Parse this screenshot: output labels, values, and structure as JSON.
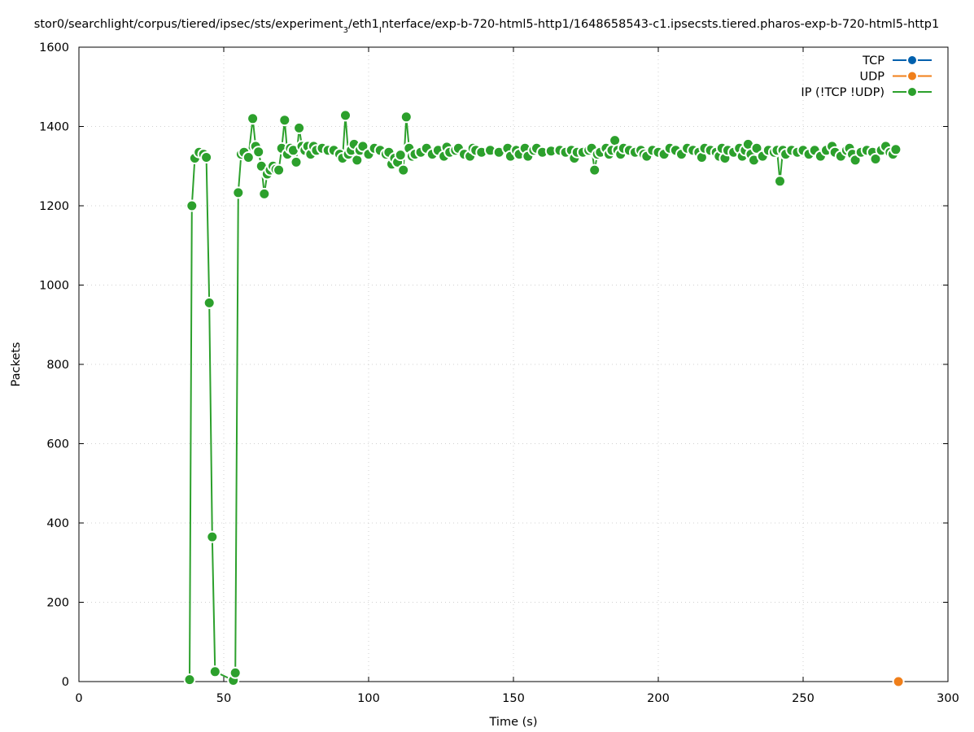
{
  "chart_data": {
    "type": "line",
    "title_parts": [
      {
        "text": "stor0/searchlight/corpus/tiered/ipsec/sts/experiment",
        "sub": false
      },
      {
        "text": "3",
        "sub": true
      },
      {
        "text": "/eth1",
        "sub": false
      },
      {
        "text": "I",
        "sub": true
      },
      {
        "text": "nterface/exp-b-720-html5-http1/1648658543-c1.ipsecsts.tiered.pharos-exp-b-720-html5-http1",
        "sub": false
      }
    ],
    "xlabel": "Time (s)",
    "ylabel": "Packets",
    "xlim": [
      0,
      300
    ],
    "ylim": [
      0,
      1600
    ],
    "xticks": [
      0,
      50,
      100,
      150,
      200,
      250,
      300
    ],
    "yticks": [
      0,
      200,
      400,
      600,
      800,
      1000,
      1200,
      1400,
      1600
    ],
    "grid": true,
    "legend_position": "top-right",
    "series": [
      {
        "name": "TCP",
        "color": "#0060ad",
        "points": []
      },
      {
        "name": "UDP",
        "color": "#f07f1a",
        "points": [
          [
            282.9,
            0
          ]
        ]
      },
      {
        "name": "IP (!TCP  !UDP)",
        "color": "#2ca02c",
        "points": [
          [
            38.2,
            5
          ],
          [
            39.0,
            1200
          ],
          [
            40.0,
            1320
          ],
          [
            41.5,
            1335
          ],
          [
            43.0,
            1330
          ],
          [
            44.0,
            1322
          ],
          [
            45.0,
            955
          ],
          [
            46.0,
            365
          ],
          [
            47.0,
            25
          ],
          [
            53.3,
            3
          ],
          [
            54.0,
            22
          ],
          [
            55.0,
            1233
          ],
          [
            56.0,
            1330
          ],
          [
            57.0,
            1335
          ],
          [
            58.5,
            1322
          ],
          [
            60.0,
            1420
          ],
          [
            61.0,
            1350
          ],
          [
            62.0,
            1336
          ],
          [
            63.0,
            1300
          ],
          [
            64.0,
            1230
          ],
          [
            65.0,
            1280
          ],
          [
            66.0,
            1290
          ],
          [
            67.0,
            1300
          ],
          [
            68.0,
            1292
          ],
          [
            69.0,
            1290
          ],
          [
            70.0,
            1345
          ],
          [
            71.0,
            1416
          ],
          [
            72.0,
            1330
          ],
          [
            73.0,
            1345
          ],
          [
            74.0,
            1340
          ],
          [
            75.0,
            1310
          ],
          [
            76.0,
            1396
          ],
          [
            77.0,
            1350
          ],
          [
            78.0,
            1340
          ],
          [
            79.0,
            1350
          ],
          [
            80.0,
            1330
          ],
          [
            81.0,
            1350
          ],
          [
            82.0,
            1340
          ],
          [
            84.0,
            1345
          ],
          [
            86.0,
            1340
          ],
          [
            88.0,
            1340
          ],
          [
            90.0,
            1330
          ],
          [
            91.0,
            1320
          ],
          [
            92.0,
            1428
          ],
          [
            93.0,
            1330
          ],
          [
            94.0,
            1340
          ],
          [
            95.0,
            1355
          ],
          [
            96.0,
            1315
          ],
          [
            97.0,
            1340
          ],
          [
            98.0,
            1350
          ],
          [
            100.0,
            1330
          ],
          [
            102.0,
            1345
          ],
          [
            104.0,
            1340
          ],
          [
            106.0,
            1330
          ],
          [
            107.0,
            1335
          ],
          [
            108.0,
            1305
          ],
          [
            109.0,
            1320
          ],
          [
            110.0,
            1310
          ],
          [
            111.0,
            1328
          ],
          [
            112.0,
            1290
          ],
          [
            113.0,
            1424
          ],
          [
            114.0,
            1345
          ],
          [
            115.0,
            1325
          ],
          [
            116.0,
            1330
          ],
          [
            118.0,
            1335
          ],
          [
            120.0,
            1345
          ],
          [
            122.0,
            1330
          ],
          [
            124.0,
            1340
          ],
          [
            126.0,
            1325
          ],
          [
            127.0,
            1348
          ],
          [
            128.0,
            1335
          ],
          [
            130.0,
            1340
          ],
          [
            131.0,
            1345
          ],
          [
            133.0,
            1330
          ],
          [
            135.0,
            1325
          ],
          [
            136.0,
            1345
          ],
          [
            137.0,
            1340
          ],
          [
            139.0,
            1335
          ],
          [
            142.0,
            1340
          ],
          [
            145.0,
            1335
          ],
          [
            148.0,
            1345
          ],
          [
            149.0,
            1325
          ],
          [
            151.0,
            1340
          ],
          [
            152.0,
            1330
          ],
          [
            154.0,
            1345
          ],
          [
            155.0,
            1325
          ],
          [
            157.0,
            1340
          ],
          [
            158.0,
            1345
          ],
          [
            160.0,
            1335
          ],
          [
            163.0,
            1338
          ],
          [
            166.0,
            1340
          ],
          [
            168.0,
            1335
          ],
          [
            170.0,
            1340
          ],
          [
            171.0,
            1320
          ],
          [
            172.0,
            1335
          ],
          [
            174.0,
            1335
          ],
          [
            176.0,
            1340
          ],
          [
            177.0,
            1345
          ],
          [
            178.0,
            1290
          ],
          [
            179.0,
            1330
          ],
          [
            180.0,
            1335
          ],
          [
            182.0,
            1345
          ],
          [
            183.0,
            1330
          ],
          [
            184.0,
            1340
          ],
          [
            185.0,
            1365
          ],
          [
            186.0,
            1340
          ],
          [
            187.0,
            1330
          ],
          [
            188.0,
            1345
          ],
          [
            190.0,
            1340
          ],
          [
            192.0,
            1335
          ],
          [
            194.0,
            1340
          ],
          [
            195.0,
            1330
          ],
          [
            196.0,
            1325
          ],
          [
            198.0,
            1340
          ],
          [
            200.0,
            1335
          ],
          [
            202.0,
            1330
          ],
          [
            204.0,
            1345
          ],
          [
            206.0,
            1340
          ],
          [
            208.0,
            1330
          ],
          [
            210.0,
            1345
          ],
          [
            212.0,
            1340
          ],
          [
            214.0,
            1335
          ],
          [
            215.0,
            1322
          ],
          [
            216.0,
            1345
          ],
          [
            218.0,
            1340
          ],
          [
            220.0,
            1335
          ],
          [
            221.0,
            1325
          ],
          [
            222.0,
            1345
          ],
          [
            223.0,
            1320
          ],
          [
            224.0,
            1340
          ],
          [
            226.0,
            1335
          ],
          [
            228.0,
            1345
          ],
          [
            229.0,
            1325
          ],
          [
            230.0,
            1340
          ],
          [
            231.0,
            1355
          ],
          [
            232.0,
            1330
          ],
          [
            233.0,
            1315
          ],
          [
            234.0,
            1345
          ],
          [
            236.0,
            1325
          ],
          [
            238.0,
            1340
          ],
          [
            240.0,
            1335
          ],
          [
            241.0,
            1340
          ],
          [
            242.0,
            1262
          ],
          [
            243.0,
            1340
          ],
          [
            244.0,
            1330
          ],
          [
            246.0,
            1340
          ],
          [
            248.0,
            1335
          ],
          [
            250.0,
            1340
          ],
          [
            252.0,
            1330
          ],
          [
            254.0,
            1340
          ],
          [
            256.0,
            1325
          ],
          [
            258.0,
            1340
          ],
          [
            260.0,
            1350
          ],
          [
            261.0,
            1335
          ],
          [
            263.0,
            1325
          ],
          [
            265.0,
            1340
          ],
          [
            266.0,
            1345
          ],
          [
            267.0,
            1330
          ],
          [
            268.0,
            1315
          ],
          [
            270.0,
            1335
          ],
          [
            272.0,
            1340
          ],
          [
            274.0,
            1335
          ],
          [
            275.0,
            1318
          ],
          [
            277.0,
            1340
          ],
          [
            278.5,
            1350
          ],
          [
            280.0,
            1335
          ],
          [
            281.0,
            1330
          ],
          [
            282.0,
            1342
          ]
        ]
      }
    ]
  }
}
